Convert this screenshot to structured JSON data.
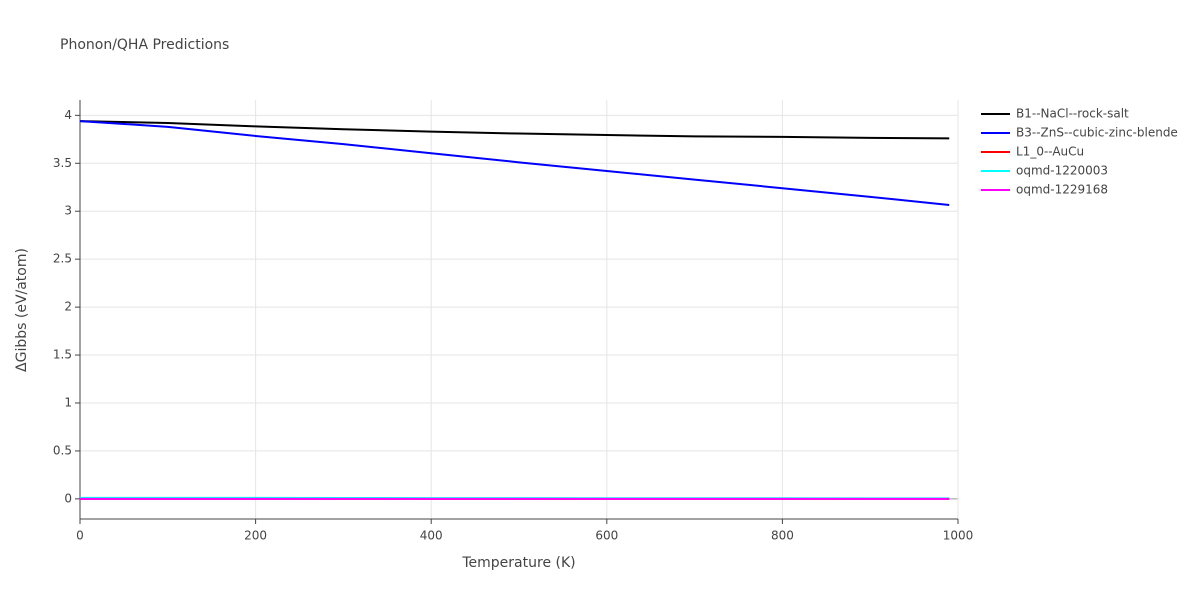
{
  "chart_data": {
    "type": "line",
    "title": "Phonon/QHA Predictions",
    "x_label": "Temperature (K)",
    "y_label": "ΔGibbs (eV/atom)",
    "x": [
      0,
      100,
      200,
      300,
      400,
      500,
      600,
      700,
      800,
      900,
      990
    ],
    "series": [
      {
        "name": "B1--NaCl--rock-salt",
        "color": "#000000",
        "values": [
          3.94,
          3.92,
          3.885,
          3.855,
          3.83,
          3.81,
          3.795,
          3.78,
          3.775,
          3.765,
          3.76
        ]
      },
      {
        "name": "B3--ZnS--cubic-zinc-blende",
        "color": "#0000ff",
        "values": [
          3.94,
          3.88,
          3.785,
          3.7,
          3.605,
          3.51,
          3.42,
          3.33,
          3.24,
          3.15,
          3.065
        ]
      },
      {
        "name": "L1_0--AuCu",
        "color": "#ff0000",
        "values": [
          0,
          0,
          0,
          0,
          0,
          0,
          0,
          0,
          0,
          0,
          0
        ]
      },
      {
        "name": "oqmd-1220003",
        "color": "#00ffff",
        "values": [
          0.01,
          0.01,
          0.01,
          0.009,
          0.008,
          0.008,
          0.007,
          0.006,
          0.006,
          0.005,
          0.005
        ]
      },
      {
        "name": "oqmd-1229168",
        "color": "#ff00ff",
        "values": [
          0,
          0,
          0,
          0,
          0,
          0,
          0,
          0,
          0,
          0,
          0
        ]
      }
    ],
    "xlim": [
      0,
      1000
    ],
    "xticks": [
      0,
      200,
      400,
      600,
      800,
      1000
    ],
    "ylim": [
      -0.21,
      4.16
    ],
    "yticks": [
      0,
      0.5,
      1,
      1.5,
      2,
      2.5,
      3,
      3.5,
      4
    ],
    "grid": true,
    "legend": "right"
  }
}
